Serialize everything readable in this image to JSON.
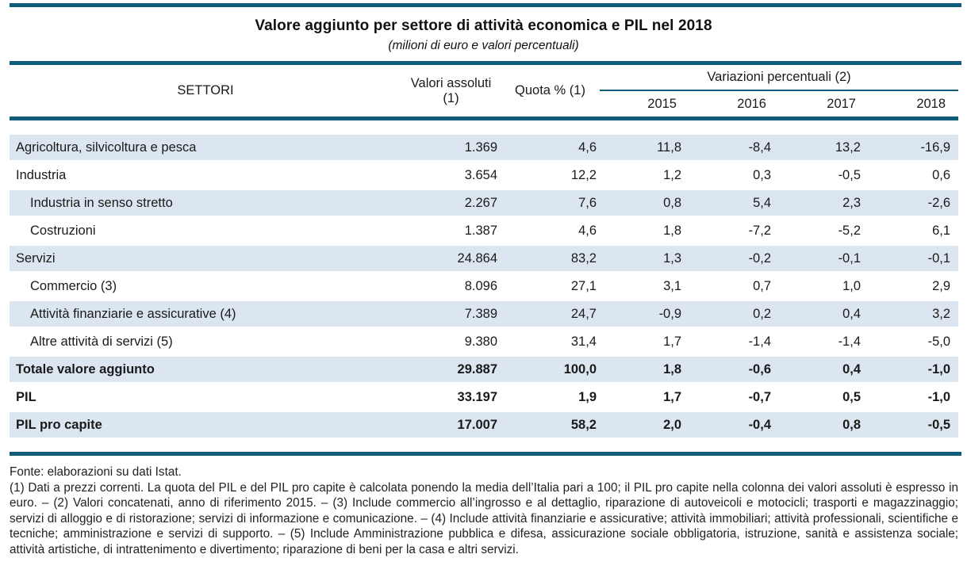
{
  "colors": {
    "accent_rule": "#0f5c7b",
    "row_shade": "#dce6f0",
    "text": "#1a1a1a"
  },
  "header": {
    "title": "Valore aggiunto per settore di attività economica e PIL nel 2018",
    "subtitle": "(milioni di euro e valori percentuali)"
  },
  "table": {
    "headers": {
      "settori": "SETTORI",
      "valori_assoluti": "Valori assoluti (1)",
      "quota": "Quota % (1)",
      "variazioni": "Variazioni percentuali (2)",
      "years": [
        "2015",
        "2016",
        "2017",
        "2018"
      ]
    },
    "rows": [
      {
        "label": "Agricoltura, silvicoltura e pesca",
        "indent": false,
        "bold": false,
        "shaded": true,
        "values": [
          "1.369",
          "4,6",
          "11,8",
          "-8,4",
          "13,2",
          "-16,9"
        ]
      },
      {
        "label": "Industria",
        "indent": false,
        "bold": false,
        "shaded": false,
        "values": [
          "3.654",
          "12,2",
          "1,2",
          "0,3",
          "-0,5",
          "0,6"
        ]
      },
      {
        "label": "Industria in senso stretto",
        "indent": true,
        "bold": false,
        "shaded": true,
        "values": [
          "2.267",
          "7,6",
          "0,8",
          "5,4",
          "2,3",
          "-2,6"
        ]
      },
      {
        "label": "Costruzioni",
        "indent": true,
        "bold": false,
        "shaded": false,
        "values": [
          "1.387",
          "4,6",
          "1,8",
          "-7,2",
          "-5,2",
          "6,1"
        ]
      },
      {
        "label": "Servizi",
        "indent": false,
        "bold": false,
        "shaded": true,
        "values": [
          "24.864",
          "83,2",
          "1,3",
          "-0,2",
          "-0,1",
          "-0,1"
        ]
      },
      {
        "label": "Commercio (3)",
        "indent": true,
        "bold": false,
        "shaded": false,
        "values": [
          "8.096",
          "27,1",
          "3,1",
          "0,7",
          "1,0",
          "2,9"
        ]
      },
      {
        "label": "Attività finanziarie e assicurative (4)",
        "indent": true,
        "bold": false,
        "shaded": true,
        "values": [
          "7.389",
          "24,7",
          "-0,9",
          "0,2",
          "0,4",
          "3,2"
        ]
      },
      {
        "label": "Altre attività di servizi (5)",
        "indent": true,
        "bold": false,
        "shaded": false,
        "values": [
          "9.380",
          "31,4",
          "1,7",
          "-1,4",
          "-1,4",
          "-5,0"
        ]
      },
      {
        "label": "Totale valore aggiunto",
        "indent": false,
        "bold": true,
        "shaded": true,
        "values": [
          "29.887",
          "100,0",
          "1,8",
          "-0,6",
          "0,4",
          "-1,0"
        ]
      },
      {
        "label": "PIL",
        "indent": false,
        "bold": true,
        "shaded": false,
        "values": [
          "33.197",
          "1,9",
          "1,7",
          "-0,7",
          "0,5",
          "-1,0"
        ]
      },
      {
        "label": "PIL pro capite",
        "indent": false,
        "bold": true,
        "shaded": true,
        "values": [
          "17.007",
          "58,2",
          "2,0",
          "-0,4",
          "0,8",
          "-0,5"
        ]
      }
    ]
  },
  "footer": {
    "fonte": "Fonte: elaborazioni su dati Istat.",
    "note": "(1) Dati a prezzi correnti. La quota del PIL e del PIL pro capite è calcolata ponendo la media dell’Italia pari a 100; il PIL pro capite nella colonna dei valori assoluti è espresso in euro. – (2) Valori concatenati, anno di riferimento 2015. – (3) Include commercio all’ingrosso e al dettaglio, riparazione di autoveicoli e motocicli; trasporti e magazzinaggio; servizi di alloggio e di ristorazione; servizi di informazione e comunicazione. – (4) Include attività finanziarie e assicurative; attività immobiliari; attività professionali, scientifiche e tecniche; amministrazione e servizi di supporto. – (5) Include Amministrazione pubblica e difesa, assicurazione sociale obbligatoria, istruzione, sanità e assistenza sociale; attività artistiche, di intrattenimento e divertimento; riparazione di beni per la casa e altri servizi."
  }
}
